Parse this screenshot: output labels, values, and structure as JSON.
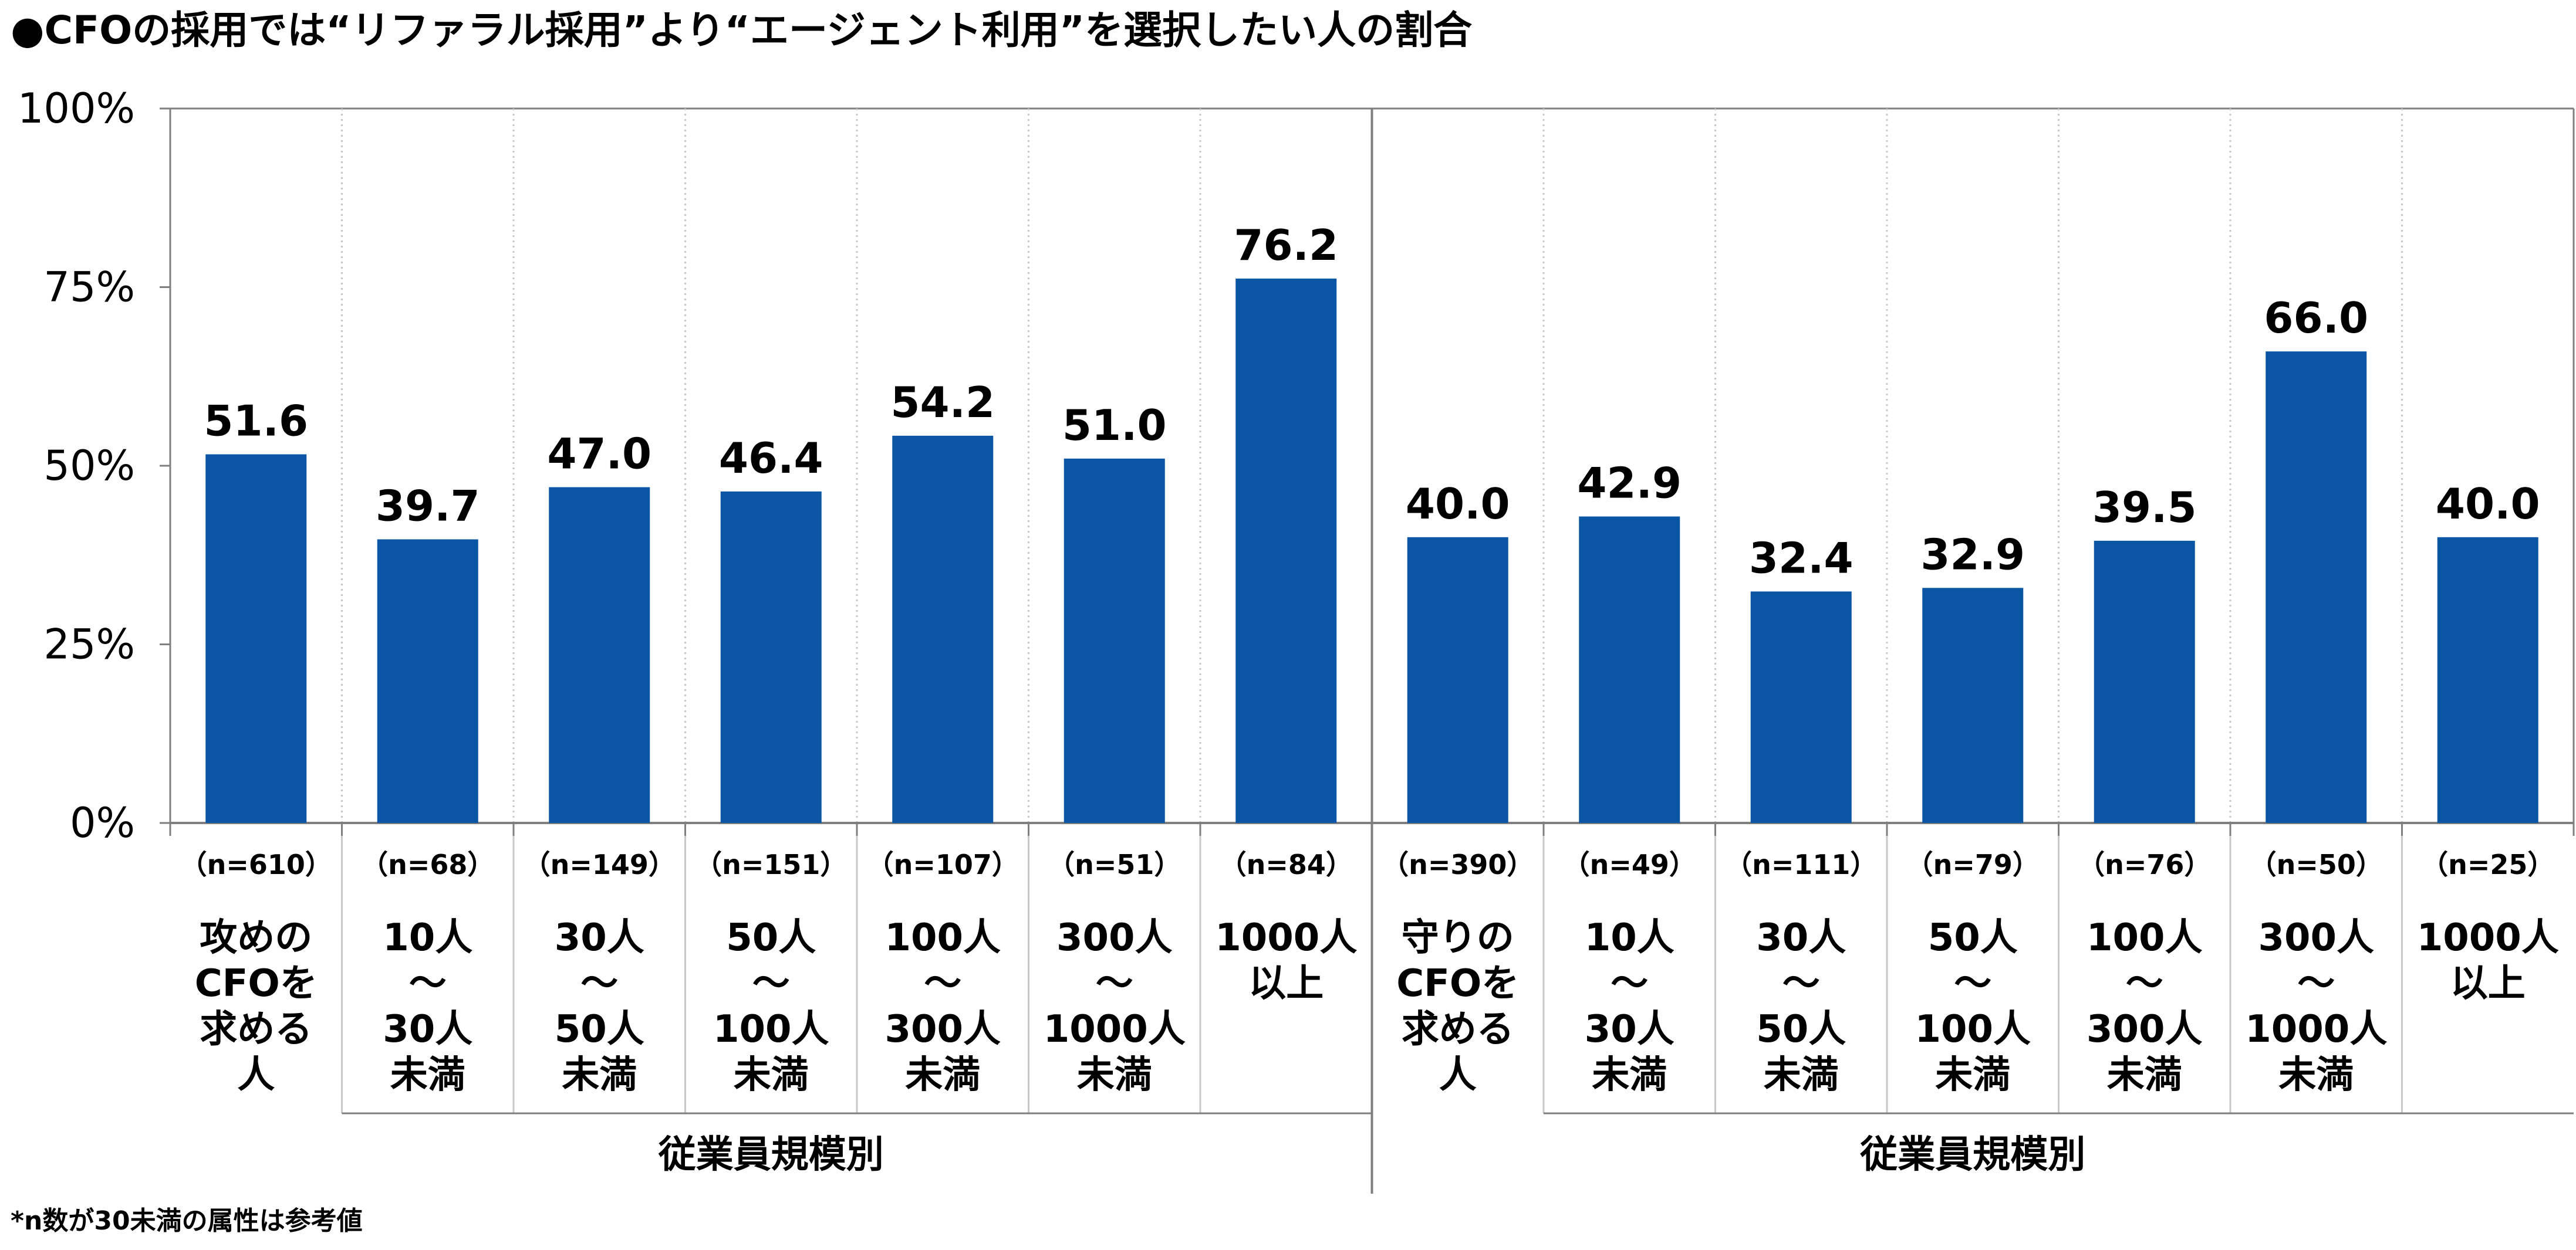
{
  "title": "●CFOの採用では“リファラル採用”より“エージェント利用”を選択したい人の割合",
  "footnote": "*n数が30未満の属性は参考値",
  "colors": {
    "bar": "#0b56a4",
    "grid": "#c8c8c8",
    "axis": "#7f7f7f"
  },
  "chart_data": {
    "type": "bar",
    "ylim": [
      0,
      100
    ],
    "yticks": [
      "0%",
      "25%",
      "50%",
      "75%",
      "100%"
    ],
    "groups": [
      {
        "label": "従業員規模別",
        "categories": [
          {
            "n": "（n=610）",
            "label": [
              "攻めの",
              "CFOを",
              "求める",
              "人"
            ],
            "value": 51.6,
            "value_label": "51.6"
          },
          {
            "n": "（n=68）",
            "label": [
              "10人",
              "～",
              "30人",
              "未満"
            ],
            "value": 39.7,
            "value_label": "39.7"
          },
          {
            "n": "（n=149）",
            "label": [
              "30人",
              "～",
              "50人",
              "未満"
            ],
            "value": 47.0,
            "value_label": "47.0"
          },
          {
            "n": "（n=151）",
            "label": [
              "50人",
              "～",
              "100人",
              "未満"
            ],
            "value": 46.4,
            "value_label": "46.4"
          },
          {
            "n": "（n=107）",
            "label": [
              "100人",
              "～",
              "300人",
              "未満"
            ],
            "value": 54.2,
            "value_label": "54.2"
          },
          {
            "n": "（n=51）",
            "label": [
              "300人",
              "～",
              "1000人",
              "未満"
            ],
            "value": 51.0,
            "value_label": "51.0"
          },
          {
            "n": "（n=84）",
            "label": [
              "1000人",
              "以上"
            ],
            "value": 76.2,
            "value_label": "76.2"
          }
        ]
      },
      {
        "label": "従業員規模別",
        "categories": [
          {
            "n": "（n=390）",
            "label": [
              "守りの",
              "CFOを",
              "求める",
              "人"
            ],
            "value": 40.0,
            "value_label": "40.0"
          },
          {
            "n": "（n=49）",
            "label": [
              "10人",
              "～",
              "30人",
              "未満"
            ],
            "value": 42.9,
            "value_label": "42.9"
          },
          {
            "n": "（n=111）",
            "label": [
              "30人",
              "～",
              "50人",
              "未満"
            ],
            "value": 32.4,
            "value_label": "32.4"
          },
          {
            "n": "（n=79）",
            "label": [
              "50人",
              "～",
              "100人",
              "未満"
            ],
            "value": 32.9,
            "value_label": "32.9"
          },
          {
            "n": "（n=76）",
            "label": [
              "100人",
              "～",
              "300人",
              "未満"
            ],
            "value": 39.5,
            "value_label": "39.5"
          },
          {
            "n": "（n=50）",
            "label": [
              "300人",
              "～",
              "1000人",
              "未満"
            ],
            "value": 66.0,
            "value_label": "66.0"
          },
          {
            "n": "（n=25）",
            "label": [
              "1000人",
              "以上"
            ],
            "value": 40.0,
            "value_label": "40.0"
          }
        ]
      }
    ]
  }
}
